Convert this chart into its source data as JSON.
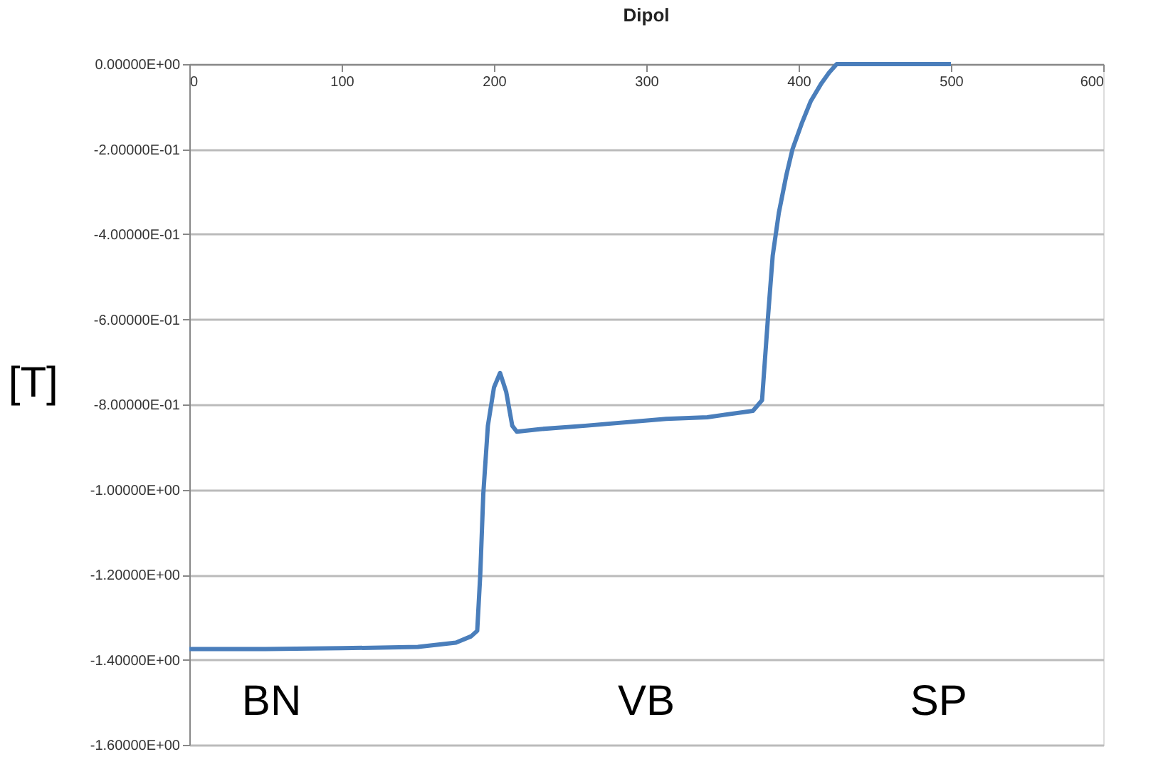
{
  "chart_data": {
    "type": "line",
    "title": "Dipol",
    "ylabel": "[T]",
    "x": [
      0,
      50,
      100,
      150,
      175,
      185,
      189,
      191,
      193,
      196,
      200,
      204,
      208,
      212,
      215,
      230,
      260,
      313,
      340,
      370,
      376,
      380,
      383,
      387,
      392,
      396,
      402,
      408,
      415,
      420,
      425,
      450,
      500
    ],
    "series": [
      {
        "color": "#4a7ebb",
        "values": [
          -1.375,
          -1.375,
          -1.373,
          -1.37,
          -1.36,
          -1.345,
          -1.332,
          -1.2,
          -1.01,
          -0.85,
          -0.76,
          -0.726,
          -0.77,
          -0.85,
          -0.864,
          -0.858,
          -0.85,
          -0.834,
          -0.83,
          -0.815,
          -0.79,
          -0.59,
          -0.45,
          -0.35,
          -0.26,
          -0.2,
          -0.14,
          -0.087,
          -0.045,
          -0.02,
          0,
          0,
          0
        ]
      }
    ],
    "xlim": [
      0,
      600
    ],
    "xticks": [
      0,
      100,
      200,
      300,
      400,
      500,
      600
    ],
    "ylim": [
      -1.6,
      0
    ],
    "yticks": [
      {
        "value": 0,
        "label": "0.00000E+00"
      },
      {
        "value": -0.2,
        "label": "-2.00000E-01"
      },
      {
        "value": -0.4,
        "label": "-4.00000E-01"
      },
      {
        "value": -0.6,
        "label": "-6.00000E-01"
      },
      {
        "value": -0.8,
        "label": "-8.00000E-01"
      },
      {
        "value": -1.0,
        "label": "-1.00000E+00"
      },
      {
        "value": -1.2,
        "label": "-1.20000E+00"
      },
      {
        "value": -1.4,
        "label": "-1.40000E+00"
      },
      {
        "value": -1.6,
        "label": "-1.60000E+00"
      }
    ],
    "grid": "y",
    "line_style": "solid",
    "marker": "none",
    "annotations": [
      "BN",
      "VB",
      "SP"
    ]
  }
}
